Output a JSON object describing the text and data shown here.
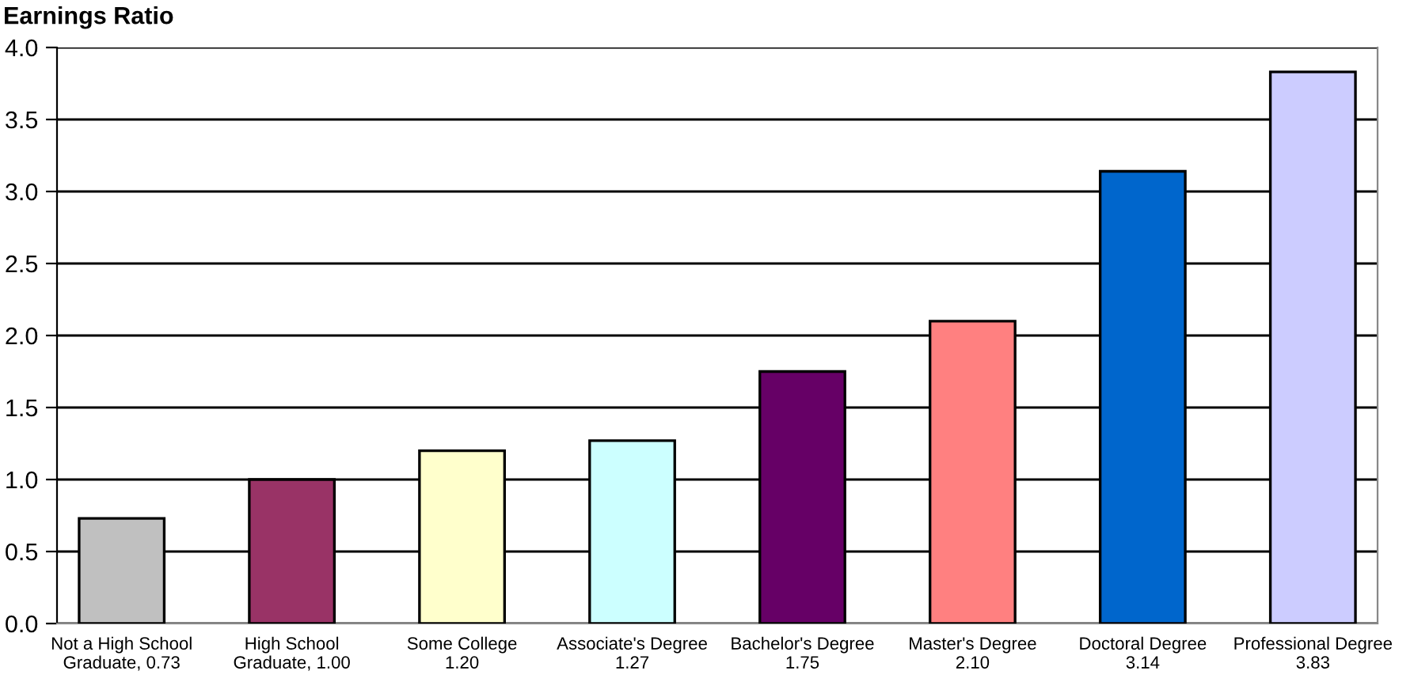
{
  "chart_data": {
    "type": "bar",
    "title": "Earnings Ratio",
    "categories": [
      "Not a High School\nGraduate, 0.73",
      "High School\nGraduate, 1.00",
      "Some College\n1.20",
      "Associate's Degree\n1.27",
      "Bachelor's Degree\n1.75",
      "Master's Degree\n2.10",
      "Doctoral Degree\n3.14",
      "Professional Degree\n3.83"
    ],
    "values": [
      0.73,
      1.0,
      1.2,
      1.27,
      1.75,
      2.1,
      3.14,
      3.83
    ],
    "colors": [
      "#c0c0c0",
      "#993366",
      "#ffffcc",
      "#ccffff",
      "#660066",
      "#ff8080",
      "#0066cc",
      "#ccccff"
    ],
    "ylim": [
      0,
      4
    ],
    "yticks": [
      {
        "value": 0,
        "label": "0.0"
      },
      0.5,
      {
        "value": 1,
        "label": "1.0"
      },
      1.5,
      {
        "value": 2,
        "label": "2.0"
      },
      2.5,
      {
        "value": 3,
        "label": "3.0"
      },
      3.5,
      {
        "value": 4,
        "label": "4.0"
      }
    ],
    "grid": "y",
    "legend": false
  }
}
